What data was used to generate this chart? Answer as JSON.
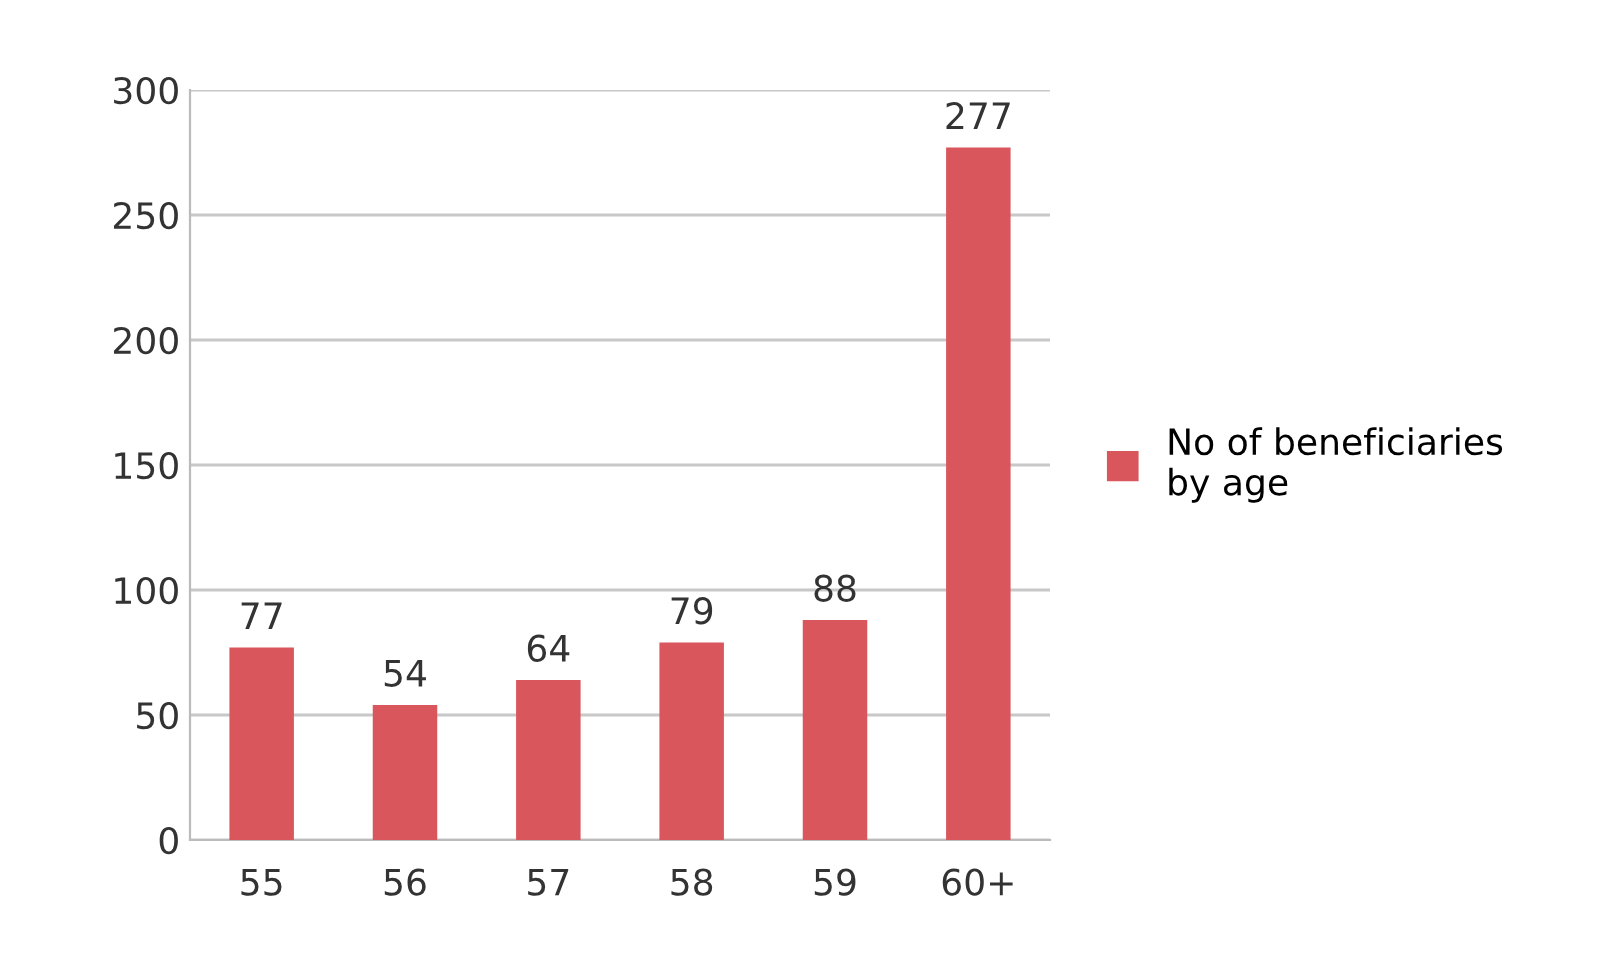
{
  "chart_data": {
    "type": "bar",
    "categories": [
      "55",
      "56",
      "57",
      "58",
      "59",
      "60+"
    ],
    "series": [
      {
        "name": "No of beneficiaries\nby age",
        "color": "#d9575c",
        "values": [
          77,
          54,
          64,
          79,
          88,
          277
        ]
      }
    ],
    "ylim": [
      0,
      300
    ],
    "yticks": [
      0,
      50,
      100,
      150,
      200,
      250,
      300
    ],
    "grid": "y",
    "legend": "right",
    "data_labels": true
  }
}
